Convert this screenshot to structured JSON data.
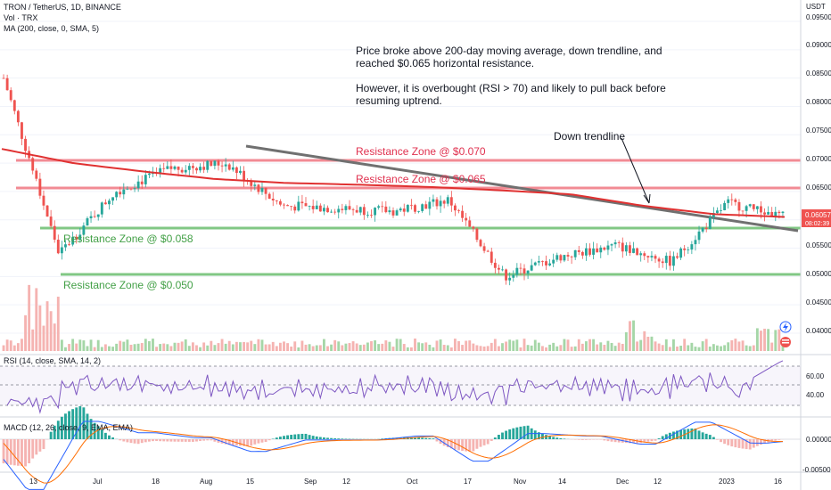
{
  "header": {
    "symbol": "TRON / TetherUS, 1D, BINANCE",
    "vol": "Vol · TRX",
    "ma": "MA (200, close, 0, SMA, 5)",
    "rsi": "RSI (14, close, SMA, 14, 2)",
    "macd": "MACD (12, 26, close, 9, EMA, EMA)"
  },
  "axis": {
    "currency": "USDT",
    "price_ticks": [
      "0.09500",
      "0.09000",
      "0.08500",
      "0.08000",
      "0.07500",
      "0.07000",
      "0.06500",
      "0.05500",
      "0.05000",
      "0.04500",
      "0.04000"
    ],
    "last_price": "0.06057",
    "countdown": "08:02:39",
    "rsi_ticks": [
      "60.00",
      "40.00"
    ],
    "macd_ticks": [
      "0.00000",
      "-0.00500"
    ],
    "x_ticks": [
      "13",
      "Jul",
      "18",
      "Aug",
      "15",
      "Sep",
      "12",
      "Oct",
      "17",
      "Nov",
      "14",
      "Dec",
      "12",
      "2023",
      "16"
    ]
  },
  "annotations": {
    "note_line1": "Price broke above 200-day moving average, down trendline, and",
    "note_line2": "reached $0.065 horizontal resistance.",
    "note_line3": "However, it is overbought (RSI > 70) and likely to pull back before",
    "note_line4": "resuming uptrend.",
    "trendline_label": "Down trendline",
    "zone_070": "Resistance Zone @ $0.070",
    "zone_065": "Resistance Zone @ $0.065",
    "zone_058": "Resistance Zone @ $0.058",
    "zone_050": "Resistance Zone @ $0.050"
  },
  "colors": {
    "up": "#26a69a",
    "down": "#ef5350",
    "ma": "#e03131",
    "resistance": "#f28b94",
    "support": "#81c784",
    "trendline": "#707070",
    "rsi": "#7e57c2",
    "macd": "#2962ff",
    "signal": "#ff6d00"
  },
  "chart_data": {
    "type": "candlestick",
    "x_range": [
      "2022-06-13",
      "2023-01-16"
    ],
    "y_range": [
      0.04,
      0.095
    ],
    "levels": [
      0.07,
      0.065,
      0.058,
      0.05
    ],
    "last_close": 0.06057,
    "ma200_approx": [
      0.0725,
      0.07,
      0.0685,
      0.0672,
      0.0665,
      0.0662,
      0.0658,
      0.0652,
      0.0645,
      0.0625,
      0.061,
      0.0605
    ],
    "price_path_approx": [
      0.085,
      0.054,
      0.065,
      0.069,
      0.07,
      0.0625,
      0.062,
      0.0615,
      0.0635,
      0.05,
      0.0535,
      0.0555,
      0.0525,
      0.063,
      0.0606
    ],
    "rsi_ticks": [
      60,
      40
    ],
    "macd_ticks": [
      0.0,
      -0.005
    ]
  }
}
